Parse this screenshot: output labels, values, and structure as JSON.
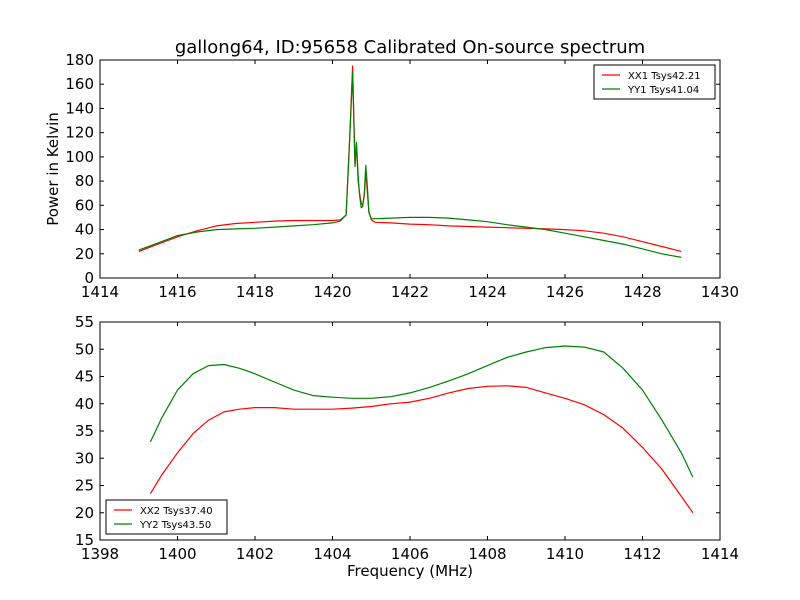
{
  "page_title": "gallong64, ID:95658 Calibrated On-source spectrum",
  "chart_data": [
    {
      "type": "line",
      "title": "gallong64, ID:95658 Calibrated On-source spectrum",
      "xlabel": "",
      "ylabel": "Power in Kelvin",
      "xlim": [
        1414,
        1430
      ],
      "ylim": [
        0,
        180
      ],
      "xticks": [
        1414,
        1416,
        1418,
        1420,
        1422,
        1424,
        1426,
        1428,
        1430
      ],
      "yticks": [
        0,
        20,
        40,
        60,
        80,
        100,
        120,
        140,
        160,
        180
      ],
      "grid": false,
      "legend_position": "top-right",
      "series": [
        {
          "name": "XX1 Tsys42.21",
          "color": "#ff0000",
          "x": [
            1415.0,
            1415.5,
            1416.0,
            1416.5,
            1417.0,
            1417.5,
            1418.0,
            1418.5,
            1419.0,
            1419.5,
            1420.0,
            1420.2,
            1420.35,
            1420.45,
            1420.52,
            1420.58,
            1420.62,
            1420.66,
            1420.7,
            1420.74,
            1420.78,
            1420.82,
            1420.86,
            1420.9,
            1420.94,
            1421.0,
            1421.1,
            1421.5,
            1422.0,
            1422.5,
            1423.0,
            1423.5,
            1424.0,
            1424.5,
            1425.0,
            1425.5,
            1426.0,
            1426.5,
            1427.0,
            1427.5,
            1428.0,
            1428.5,
            1429.0
          ],
          "y": [
            22,
            28,
            34,
            39,
            43,
            45,
            46,
            47,
            47.5,
            47.5,
            47.5,
            48,
            52,
            120,
            175,
            95,
            110,
            80,
            70,
            62,
            60,
            68,
            88,
            70,
            55,
            48,
            46,
            45.5,
            44.5,
            44,
            43,
            42.5,
            42,
            41.5,
            41,
            40.5,
            40,
            39,
            37,
            34,
            30,
            26,
            22
          ]
        },
        {
          "name": "YY1 Tsys41.04",
          "color": "#008000",
          "x": [
            1415.0,
            1415.5,
            1416.0,
            1416.5,
            1417.0,
            1417.5,
            1418.0,
            1418.5,
            1419.0,
            1419.5,
            1420.0,
            1420.2,
            1420.35,
            1420.45,
            1420.52,
            1420.58,
            1420.62,
            1420.66,
            1420.7,
            1420.74,
            1420.78,
            1420.82,
            1420.86,
            1420.9,
            1420.94,
            1421.0,
            1421.1,
            1421.5,
            1422.0,
            1422.5,
            1423.0,
            1423.5,
            1424.0,
            1424.5,
            1425.0,
            1425.5,
            1426.0,
            1426.5,
            1427.0,
            1427.5,
            1428.0,
            1428.5,
            1429.0
          ],
          "y": [
            23,
            29,
            35,
            38,
            40,
            40.5,
            41,
            42,
            43,
            44,
            45.5,
            47,
            52,
            118,
            170,
            92,
            112,
            85,
            68,
            58,
            59,
            70,
            93,
            75,
            54,
            49,
            49,
            49.5,
            50,
            50,
            49.5,
            48,
            46.5,
            44,
            42,
            40,
            37,
            34,
            31,
            28,
            24,
            20,
            17
          ]
        }
      ]
    },
    {
      "type": "line",
      "title": "",
      "xlabel": "Frequency (MHz)",
      "ylabel": "",
      "xlim": [
        1398,
        1414
      ],
      "ylim": [
        15,
        55
      ],
      "xticks": [
        1398,
        1400,
        1402,
        1404,
        1406,
        1408,
        1410,
        1412,
        1414
      ],
      "yticks": [
        15,
        20,
        25,
        30,
        35,
        40,
        45,
        50,
        55
      ],
      "grid": false,
      "legend_position": "bottom-left",
      "series": [
        {
          "name": "XX2 Tsys37.40",
          "color": "#ff0000",
          "x": [
            1399.3,
            1399.6,
            1400.0,
            1400.4,
            1400.8,
            1401.2,
            1401.6,
            1402.0,
            1402.5,
            1403.0,
            1403.5,
            1404.0,
            1404.5,
            1405.0,
            1405.5,
            1406.0,
            1406.5,
            1407.0,
            1407.5,
            1408.0,
            1408.5,
            1409.0,
            1409.5,
            1410.0,
            1410.5,
            1411.0,
            1411.5,
            1412.0,
            1412.5,
            1413.0,
            1413.3
          ],
          "y": [
            23.5,
            27,
            31,
            34.5,
            37,
            38.5,
            39,
            39.3,
            39.3,
            39,
            39,
            39,
            39.2,
            39.5,
            40,
            40.3,
            41,
            42,
            42.8,
            43.2,
            43.3,
            43,
            42,
            41,
            39.8,
            38,
            35.5,
            32,
            28,
            23,
            20
          ]
        },
        {
          "name": "YY2 Tsys43.50",
          "color": "#008000",
          "x": [
            1399.3,
            1399.6,
            1400.0,
            1400.4,
            1400.8,
            1401.2,
            1401.6,
            1402.0,
            1402.5,
            1403.0,
            1403.5,
            1404.0,
            1404.5,
            1405.0,
            1405.5,
            1406.0,
            1406.5,
            1407.0,
            1407.5,
            1408.0,
            1408.5,
            1409.0,
            1409.5,
            1410.0,
            1410.5,
            1411.0,
            1411.5,
            1412.0,
            1412.5,
            1413.0,
            1413.3
          ],
          "y": [
            33,
            37.5,
            42.5,
            45.5,
            47,
            47.2,
            46.5,
            45.5,
            44,
            42.5,
            41.5,
            41.2,
            41,
            41,
            41.3,
            42,
            43,
            44.2,
            45.5,
            47,
            48.5,
            49.5,
            50.3,
            50.6,
            50.4,
            49.5,
            46.5,
            42.5,
            37,
            31,
            26.5
          ]
        }
      ]
    }
  ]
}
